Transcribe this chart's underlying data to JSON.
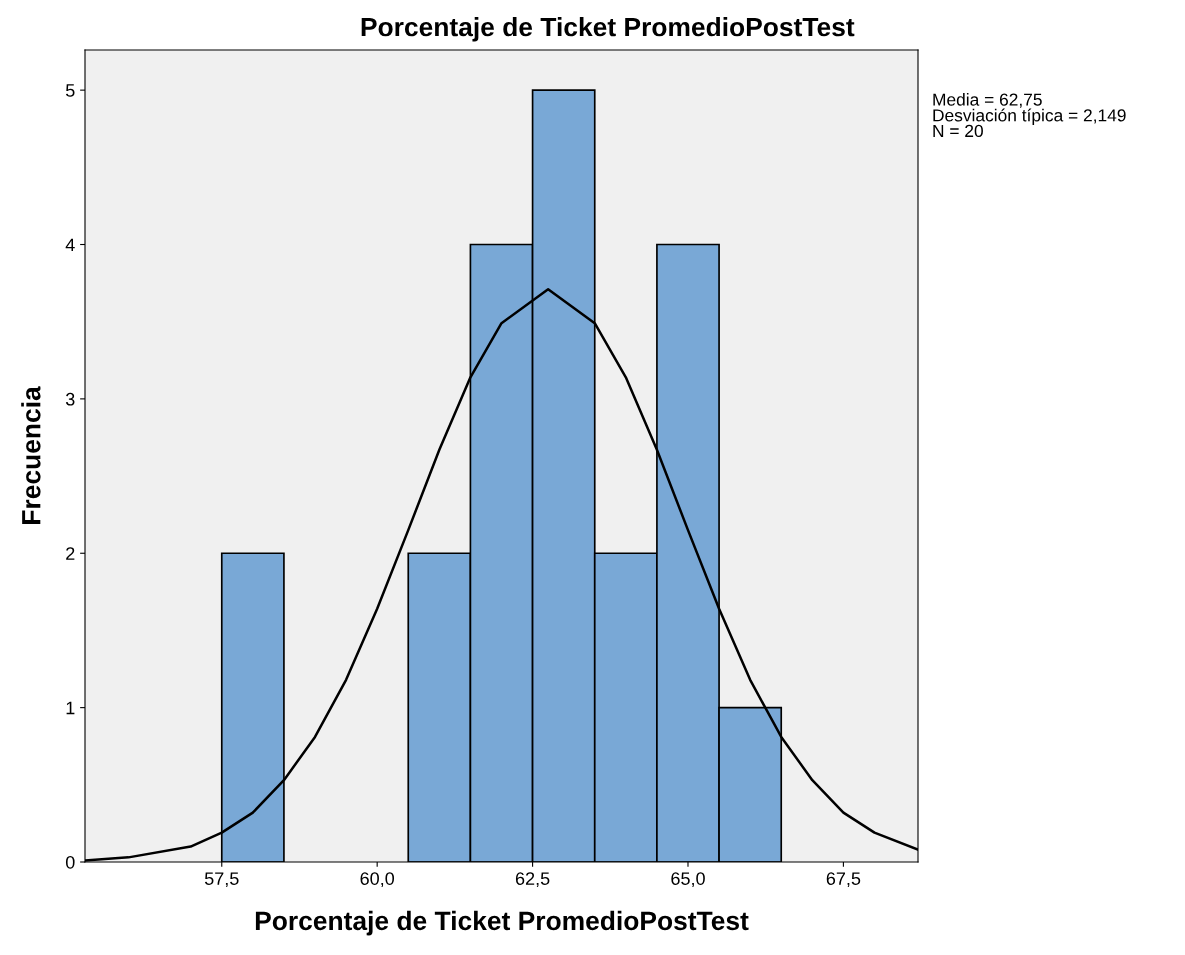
{
  "chart_data": {
    "type": "histogram",
    "title": "Porcentaje de Ticket PromedioPostTest",
    "xlabel": "Porcentaje de Ticket PromedioPostTest",
    "ylabel": "Frecuencia",
    "annotations": [
      "Media = 62,75",
      "Desviación típica = 2,149",
      "N = 20"
    ],
    "bins": [
      57.5,
      58.5,
      59.5,
      60.5,
      61.5,
      62.5,
      63.5,
      64.5,
      65.5,
      66.5
    ],
    "series": [
      {
        "type": "histogram",
        "color": "#79a8d6",
        "values": [
          2,
          0,
          0,
          2,
          4,
          5,
          2,
          4,
          1
        ]
      },
      {
        "type": "line",
        "color": "#000000",
        "x": [
          55.3,
          56,
          57,
          57.5,
          58,
          58.5,
          59,
          59.5,
          60,
          60.5,
          61,
          61.5,
          62,
          62.75,
          63.5,
          64,
          64.5,
          65,
          65.5,
          66,
          66.5,
          67,
          67.5,
          68,
          68.7
        ],
        "values": [
          0.01,
          0.03,
          0.1,
          0.19,
          0.32,
          0.53,
          0.81,
          1.18,
          1.64,
          2.15,
          2.67,
          3.14,
          3.49,
          3.71,
          3.49,
          3.14,
          2.67,
          2.15,
          1.64,
          1.18,
          0.81,
          0.53,
          0.32,
          0.19,
          0.08
        ]
      }
    ],
    "xlim": [
      55.3,
      68.7
    ],
    "ylim": [
      0,
      5.26
    ],
    "xticks": [
      {
        "value": 57.5,
        "label": "57,5"
      },
      {
        "value": 60,
        "label": "60,0"
      },
      {
        "value": 62.5,
        "label": "62,5"
      },
      {
        "value": 65,
        "label": "65,0"
      },
      {
        "value": 67.5,
        "label": "67,5"
      }
    ],
    "yticks": [
      0,
      1,
      2,
      3,
      4,
      5
    ],
    "grid": false,
    "legend": false,
    "marker": "none",
    "line_style": "solid"
  }
}
